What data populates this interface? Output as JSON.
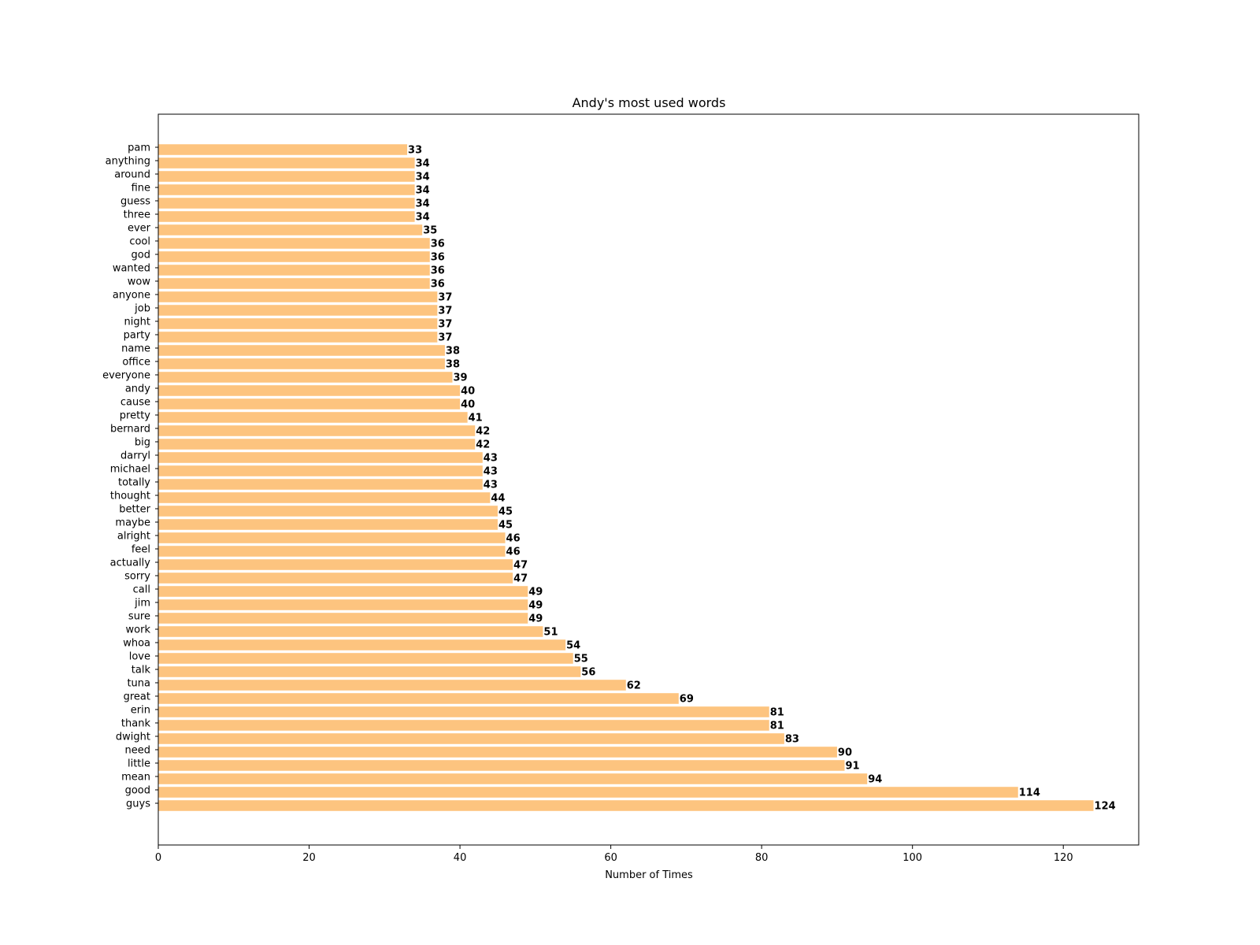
{
  "chart_data": {
    "type": "bar",
    "orientation": "horizontal",
    "title": "Andy's most used words",
    "xlabel": "Number of Times",
    "ylabel": "",
    "xlim": [
      0,
      130
    ],
    "xticks": [
      0,
      20,
      40,
      60,
      80,
      100,
      120
    ],
    "grid": false,
    "bar_color": "#fdc47f",
    "value_labels": true,
    "categories": [
      "guys",
      "good",
      "mean",
      "little",
      "need",
      "dwight",
      "thank",
      "erin",
      "great",
      "tuna",
      "talk",
      "love",
      "whoa",
      "work",
      "sure",
      "jim",
      "call",
      "sorry",
      "actually",
      "feel",
      "alright",
      "maybe",
      "better",
      "thought",
      "totally",
      "michael",
      "darryl",
      "big",
      "bernard",
      "pretty",
      "cause",
      "andy",
      "everyone",
      "office",
      "name",
      "party",
      "night",
      "job",
      "anyone",
      "wow",
      "wanted",
      "god",
      "cool",
      "ever",
      "three",
      "guess",
      "fine",
      "around",
      "anything",
      "pam"
    ],
    "values": [
      124,
      114,
      94,
      91,
      90,
      83,
      81,
      81,
      69,
      62,
      56,
      55,
      54,
      51,
      49,
      49,
      49,
      47,
      47,
      46,
      46,
      45,
      45,
      44,
      43,
      43,
      43,
      42,
      42,
      41,
      40,
      40,
      39,
      38,
      38,
      37,
      37,
      37,
      37,
      36,
      36,
      36,
      36,
      35,
      34,
      34,
      34,
      34,
      34,
      33
    ]
  }
}
